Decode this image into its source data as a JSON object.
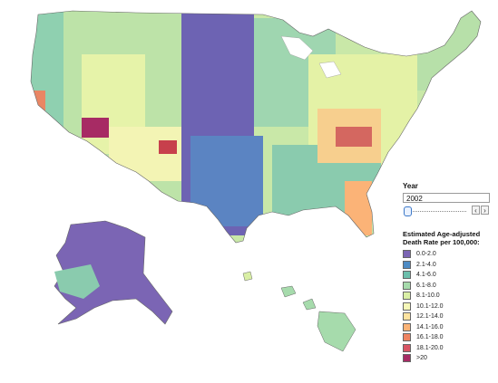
{
  "year_control": {
    "label": "Year",
    "value": "2002",
    "prev_icon": "chevron-left-icon",
    "next_icon": "chevron-right-icon",
    "prev_glyph": "‹",
    "next_glyph": "›"
  },
  "legend": {
    "title_line1": "Estimated Age-adjusted",
    "title_line2": "Death Rate per 100,000:",
    "items": [
      {
        "label": "0.0-2.0",
        "color": "#7b65b4"
      },
      {
        "label": "2.1-4.0",
        "color": "#4e8bc4"
      },
      {
        "label": "4.1-6.0",
        "color": "#6cbfac"
      },
      {
        "label": "6.1-8.0",
        "color": "#a6dbac"
      },
      {
        "label": "8.1-10.0",
        "color": "#d9efa5"
      },
      {
        "label": "10.1-12.0",
        "color": "#f5f7b8"
      },
      {
        "label": "12.1-14.0",
        "color": "#fde3a0"
      },
      {
        "label": "14.1-16.0",
        "color": "#fbb377"
      },
      {
        "label": "16.1-18.0",
        "color": "#ef8462"
      },
      {
        "label": "18.1-20.0",
        "color": "#d95565"
      },
      {
        "label": ">20",
        "color": "#a72b64"
      }
    ]
  }
}
